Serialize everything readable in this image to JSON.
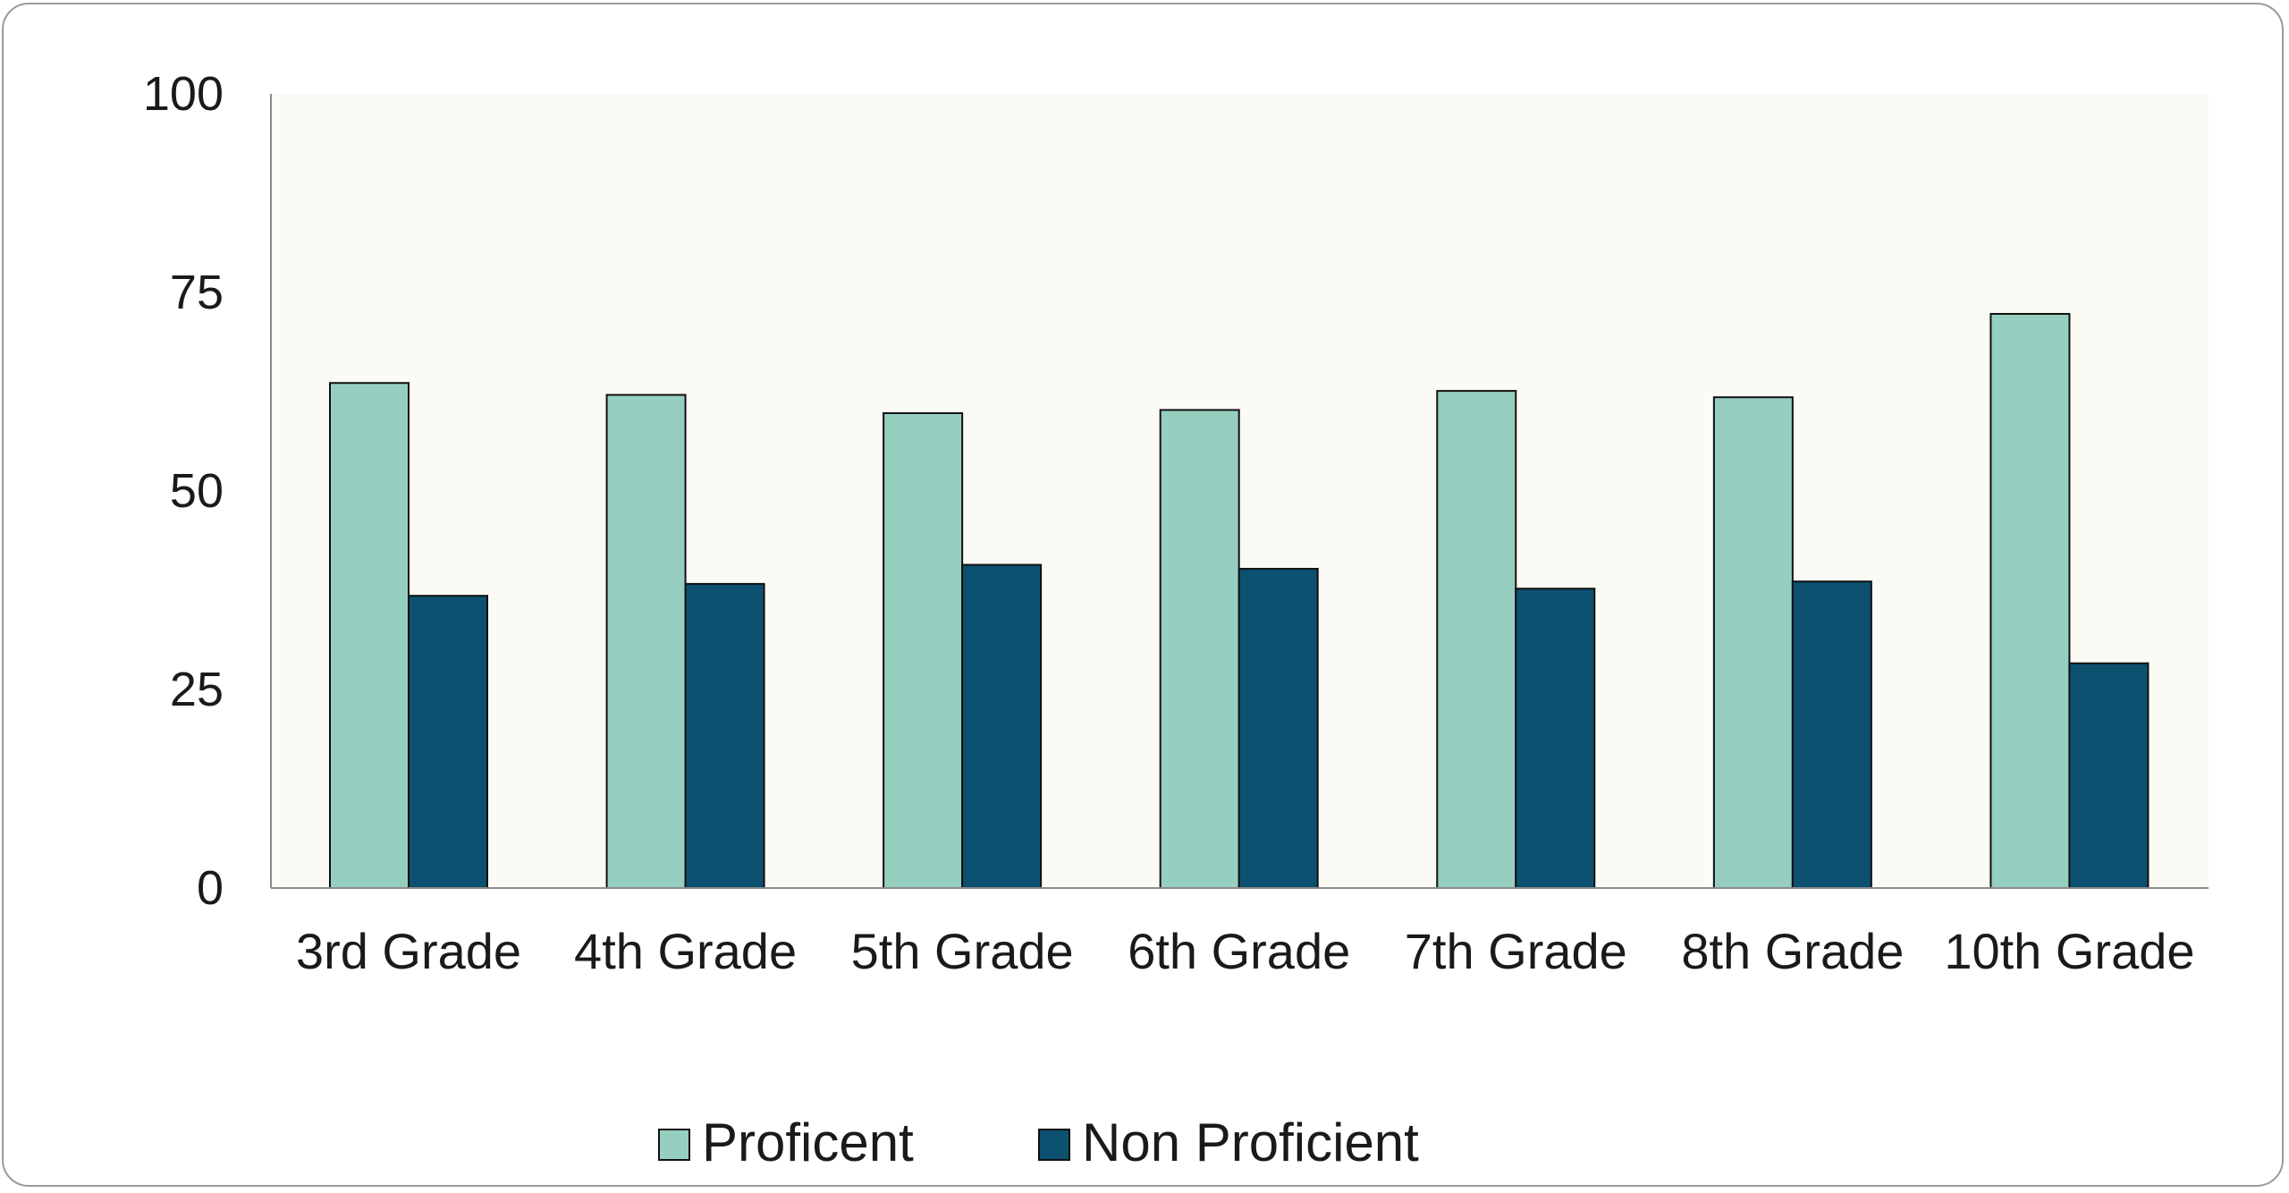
{
  "chart_data": {
    "type": "bar",
    "categories": [
      "3rd Grade",
      "4th Grade",
      "5th Grade",
      "6th Grade",
      "7th Grade",
      "8th Grade",
      "10th Grade"
    ],
    "series": [
      {
        "name": "Proficent",
        "color": "#96cfc0",
        "values": [
          63.6,
          62.1,
          59.8,
          60.2,
          62.6,
          61.8,
          72.3
        ]
      },
      {
        "name": "Non Proficient",
        "color": "#0c5170",
        "values": [
          36.8,
          38.3,
          40.7,
          40.2,
          37.7,
          38.6,
          28.3
        ]
      }
    ],
    "ylim": [
      0,
      100
    ],
    "yticks": [
      0,
      25,
      50,
      75,
      100
    ],
    "title": "",
    "xlabel": "",
    "ylabel": "",
    "grid": false,
    "legend": "bottom-center",
    "plot_background": "#fbfaf5"
  }
}
